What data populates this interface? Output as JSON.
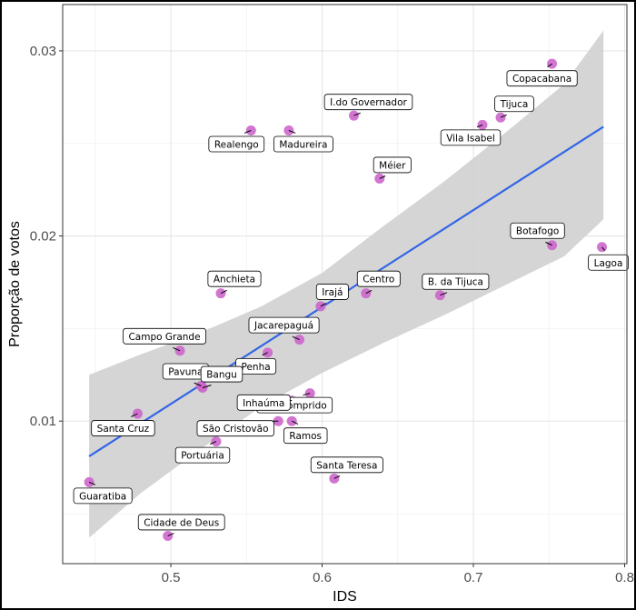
{
  "chart_data": {
    "type": "scatter",
    "title": "",
    "xlabel": "IDS",
    "ylabel": "Proporção de votos",
    "xlim": [
      0.4285,
      0.8015
    ],
    "ylim": [
      0.0023,
      0.0325
    ],
    "xticks": [
      0.5,
      0.6,
      0.7,
      0.8
    ],
    "xtick_labels": [
      "0.5",
      "0.6",
      "0.7",
      "0.8"
    ],
    "yticks": [
      0.01,
      0.02,
      0.03
    ],
    "ytick_labels": [
      "0.01",
      "0.02",
      "0.03"
    ],
    "grid": true,
    "legend": "none",
    "point_color": "#CC66CC",
    "line_color": "#3366E6",
    "band_color": "#D3D3D3",
    "points": [
      {
        "name": "Copacabana",
        "x": 0.752,
        "y": 0.0293
      },
      {
        "name": "Tijuca",
        "x": 0.718,
        "y": 0.0264
      },
      {
        "name": "Vila Isabel",
        "x": 0.706,
        "y": 0.026
      },
      {
        "name": "I.do Governador",
        "x": 0.621,
        "y": 0.0265
      },
      {
        "name": "Realengo",
        "x": 0.553,
        "y": 0.0257
      },
      {
        "name": "Madureira",
        "x": 0.578,
        "y": 0.0257
      },
      {
        "name": "Méier",
        "x": 0.638,
        "y": 0.0231
      },
      {
        "name": "Botafogo",
        "x": 0.752,
        "y": 0.0195
      },
      {
        "name": "Lagoa",
        "x": 0.785,
        "y": 0.0194
      },
      {
        "name": "Anchieta",
        "x": 0.533,
        "y": 0.0169
      },
      {
        "name": "Centro",
        "x": 0.629,
        "y": 0.0169
      },
      {
        "name": "B. da Tijuca",
        "x": 0.678,
        "y": 0.0168
      },
      {
        "name": "Irajá",
        "x": 0.599,
        "y": 0.0162
      },
      {
        "name": "Jacarepaguá",
        "x": 0.585,
        "y": 0.0144
      },
      {
        "name": "Campo Grande",
        "x": 0.506,
        "y": 0.0138
      },
      {
        "name": "Penha",
        "x": 0.564,
        "y": 0.0137
      },
      {
        "name": "Pavuna",
        "x": 0.52,
        "y": 0.0119
      },
      {
        "name": "Bangu",
        "x": 0.521,
        "y": 0.0118
      },
      {
        "name": "Rio Comprido",
        "x": 0.592,
        "y": 0.0115
      },
      {
        "name": "Inhaúma",
        "x": 0.58,
        "y": 0.0111
      },
      {
        "name": "Santa Cruz",
        "x": 0.478,
        "y": 0.0104
      },
      {
        "name": "São Cristovão",
        "x": 0.571,
        "y": 0.01
      },
      {
        "name": "Ramos",
        "x": 0.58,
        "y": 0.01
      },
      {
        "name": "Portuária",
        "x": 0.53,
        "y": 0.0089
      },
      {
        "name": "Santa Teresa",
        "x": 0.608,
        "y": 0.0069
      },
      {
        "name": "Guaratiba",
        "x": 0.446,
        "y": 0.0067
      },
      {
        "name": "Cidade de Deus",
        "x": 0.498,
        "y": 0.0038
      }
    ],
    "trend": {
      "method": "linear",
      "x": [
        0.446,
        0.786
      ],
      "y": [
        0.0081,
        0.0259
      ]
    },
    "confidence_band": {
      "x": [
        0.446,
        0.48,
        0.52,
        0.56,
        0.6,
        0.64,
        0.68,
        0.72,
        0.76,
        0.786
      ],
      "lower": [
        0.0037,
        0.0061,
        0.0085,
        0.0108,
        0.0126,
        0.0142,
        0.0157,
        0.0173,
        0.0189,
        0.0209
      ],
      "upper": [
        0.0125,
        0.0136,
        0.0148,
        0.0162,
        0.018,
        0.0205,
        0.0229,
        0.0255,
        0.0282,
        0.0311
      ]
    }
  }
}
